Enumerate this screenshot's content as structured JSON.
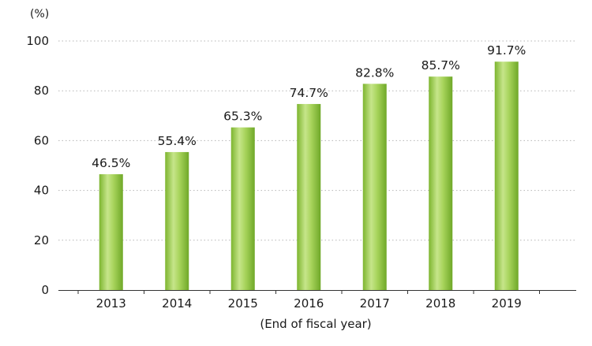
{
  "chart_data": {
    "type": "bar",
    "categories": [
      "2013",
      "2014",
      "2015",
      "2016",
      "2017",
      "2018",
      "2019"
    ],
    "series": [
      {
        "values": [
          46.5,
          55.4,
          65.3,
          74.7,
          82.8,
          85.7,
          91.7
        ],
        "labels": [
          "46.5%",
          "55.4%",
          "65.3%",
          "74.7%",
          "82.8%",
          "85.7%",
          "91.7%"
        ],
        "color": "#8cc43e"
      }
    ],
    "yunit": "(%)",
    "xlabel": "(End of fiscal year)",
    "ylim": [
      0,
      100
    ],
    "yticks": [
      0,
      20,
      40,
      60,
      80,
      100
    ],
    "grid": "horizontal-dotted",
    "legend": "none"
  }
}
